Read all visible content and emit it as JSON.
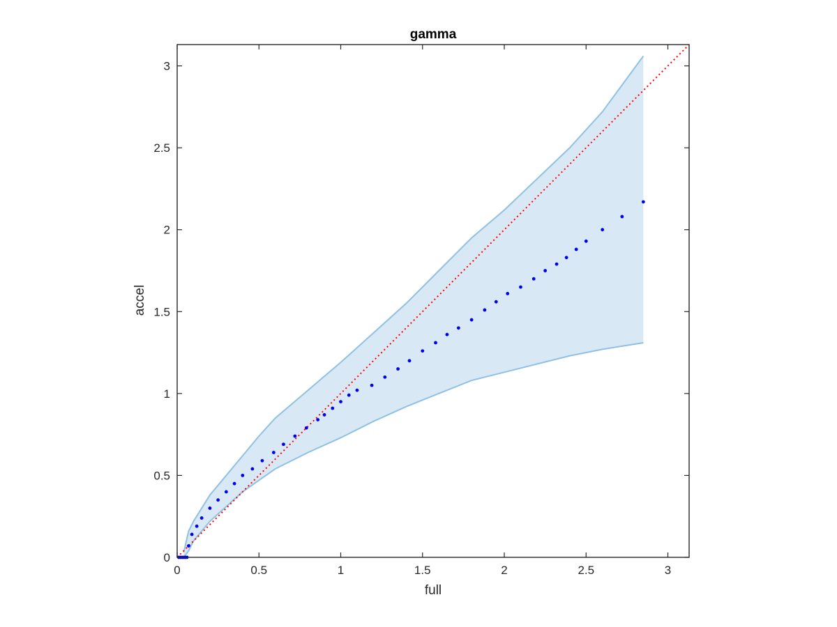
{
  "chart_data": {
    "type": "scatter",
    "title": "gamma",
    "xlabel": "full",
    "ylabel": "accel",
    "xlim": [
      0,
      3.13
    ],
    "ylim": [
      0,
      3.13
    ],
    "xticks": [
      "0",
      "0.5",
      "1",
      "1.5",
      "2",
      "2.5",
      "3"
    ],
    "yticks": [
      "0",
      "0.5",
      "1",
      "1.5",
      "2",
      "2.5",
      "3"
    ],
    "grid": false,
    "colors": {
      "points": "#0000ee",
      "band_fill": "#d8e8f4",
      "band_edge": "#8fc1e3",
      "reference_line": "#ff0000",
      "axes": "#262626"
    },
    "reference_line": {
      "style": "dotted",
      "x": [
        0,
        3.13
      ],
      "y": [
        0,
        3.13
      ]
    },
    "band": {
      "x": [
        0.04,
        0.07,
        0.1,
        0.15,
        0.2,
        0.3,
        0.4,
        0.5,
        0.6,
        0.8,
        1.0,
        1.2,
        1.4,
        1.6,
        1.8,
        2.0,
        2.2,
        2.4,
        2.6,
        2.85
      ],
      "upper": [
        0.03,
        0.16,
        0.22,
        0.3,
        0.38,
        0.5,
        0.62,
        0.74,
        0.85,
        1.02,
        1.19,
        1.37,
        1.55,
        1.75,
        1.95,
        2.12,
        2.31,
        2.5,
        2.72,
        3.06
      ],
      "lower": [
        0.0,
        0.04,
        0.1,
        0.16,
        0.22,
        0.31,
        0.4,
        0.47,
        0.54,
        0.64,
        0.73,
        0.83,
        0.92,
        1.0,
        1.08,
        1.13,
        1.18,
        1.23,
        1.27,
        1.31
      ]
    },
    "series": [
      {
        "x": [
          0.01,
          0.02,
          0.03,
          0.04,
          0.05,
          0.06,
          0.07,
          0.09,
          0.12,
          0.15,
          0.2,
          0.25,
          0.3,
          0.35,
          0.4,
          0.46,
          0.52,
          0.59,
          0.65,
          0.72,
          0.79,
          0.86,
          0.9,
          0.95,
          1.0,
          1.05,
          1.1,
          1.19,
          1.27,
          1.35,
          1.42,
          1.5,
          1.58,
          1.65,
          1.72,
          1.8,
          1.88,
          1.95,
          2.02,
          2.1,
          2.18,
          2.25,
          2.32,
          2.38,
          2.44,
          2.5,
          2.6,
          2.72,
          2.85
        ],
        "y": [
          0.0,
          0.0,
          0.0,
          0.0,
          0.0,
          0.0,
          0.07,
          0.14,
          0.19,
          0.24,
          0.3,
          0.35,
          0.4,
          0.45,
          0.5,
          0.54,
          0.59,
          0.64,
          0.69,
          0.74,
          0.79,
          0.84,
          0.87,
          0.91,
          0.95,
          0.99,
          1.02,
          1.05,
          1.1,
          1.15,
          1.2,
          1.26,
          1.31,
          1.36,
          1.4,
          1.45,
          1.51,
          1.56,
          1.61,
          1.65,
          1.7,
          1.75,
          1.79,
          1.83,
          1.88,
          1.93,
          2.0,
          2.08,
          2.17
        ]
      }
    ]
  }
}
